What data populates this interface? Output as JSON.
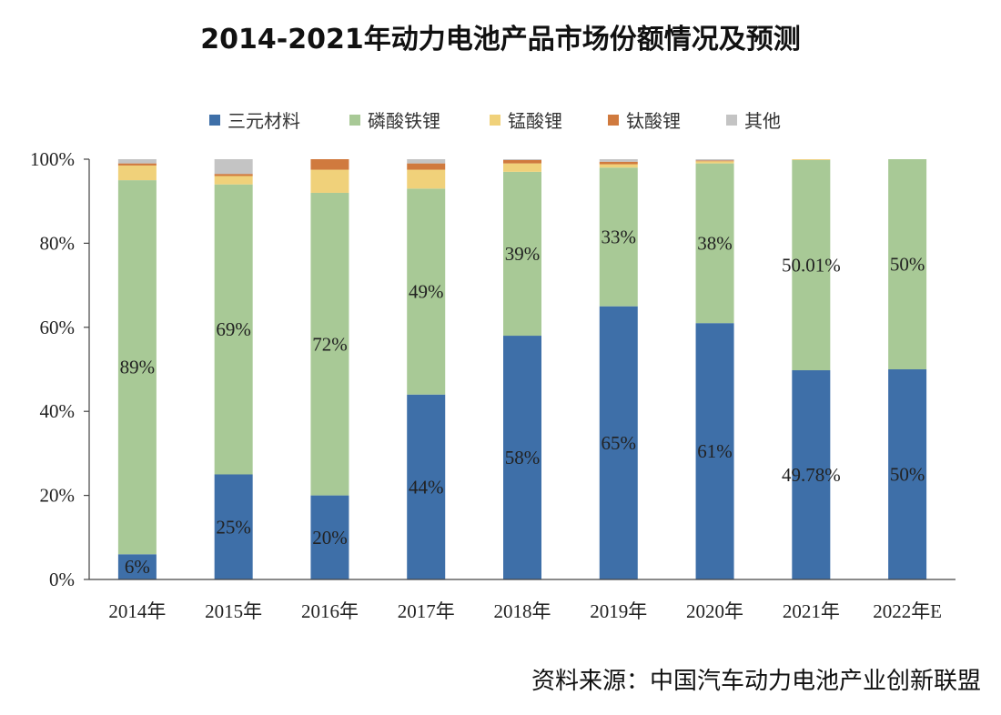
{
  "title": "2014-2021年动力电池产品市场份额情况及预测",
  "source": "资料来源：中国汽车动力电池产业创新联盟",
  "chart_data": {
    "type": "bar",
    "stacked": true,
    "categories": [
      "2014年",
      "2015年",
      "2016年",
      "2017年",
      "2018年",
      "2019年",
      "2020年",
      "2021年",
      "2022年E"
    ],
    "y_ticks": [
      "0%",
      "20%",
      "40%",
      "60%",
      "80%",
      "100%"
    ],
    "ylim": [
      0,
      100
    ],
    "legend_position": "top",
    "series": [
      {
        "name": "三元材料",
        "color": "#3e6fa8",
        "values": [
          6,
          25,
          20,
          44,
          58,
          65,
          61,
          49.78,
          50
        ],
        "labels": [
          "6%",
          "25%",
          "20%",
          "44%",
          "58%",
          "65%",
          "61%",
          "49.78%",
          "50%"
        ]
      },
      {
        "name": "磷酸铁锂",
        "color": "#a8c996",
        "values": [
          89,
          69,
          72,
          49,
          39,
          33,
          38,
          50.01,
          50
        ],
        "labels": [
          "89%",
          "69%",
          "72%",
          "49%",
          "39%",
          "33%",
          "38%",
          "50.01%",
          "50%"
        ]
      },
      {
        "name": "锰酸锂",
        "color": "#f0d17a",
        "values": [
          3.5,
          2,
          5.5,
          4.5,
          2,
          0.8,
          0.5,
          0.2,
          0
        ],
        "labels": []
      },
      {
        "name": "钛酸锂",
        "color": "#d07a3e",
        "values": [
          0.5,
          0.5,
          2.5,
          1.5,
          0.8,
          0.6,
          0.2,
          0,
          0
        ],
        "labels": []
      },
      {
        "name": "其他",
        "color": "#c4c4c4",
        "values": [
          1,
          3.5,
          0,
          1,
          0.2,
          0.6,
          0.3,
          0.01,
          0
        ],
        "labels": []
      }
    ]
  }
}
